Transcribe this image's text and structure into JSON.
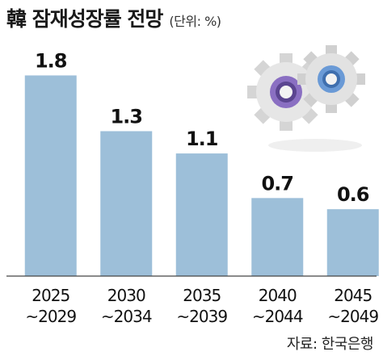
{
  "title": "韓 잠재성장률 전망",
  "unit": "(단위: %)",
  "source": "자료: 한국은행",
  "chart_data": {
    "type": "bar",
    "title": "韓 잠재성장률 전망",
    "categories": [
      [
        "2025",
        "~2029"
      ],
      [
        "2030",
        "~2034"
      ],
      [
        "2035",
        "~2039"
      ],
      [
        "2040",
        "~2044"
      ],
      [
        "2045",
        "~2049"
      ]
    ],
    "values": [
      1.8,
      1.3,
      1.1,
      0.7,
      0.6
    ],
    "value_labels": [
      "1.8",
      "1.3",
      "1.1",
      "0.7",
      "0.6"
    ],
    "ylim": [
      0,
      2.1
    ],
    "grid": false,
    "bar_color": "#9dbfd9"
  },
  "illustration": {
    "name": "gears-icon",
    "colors": [
      "#8a6fc2",
      "#6a9ad6",
      "#e3e3e3"
    ]
  }
}
